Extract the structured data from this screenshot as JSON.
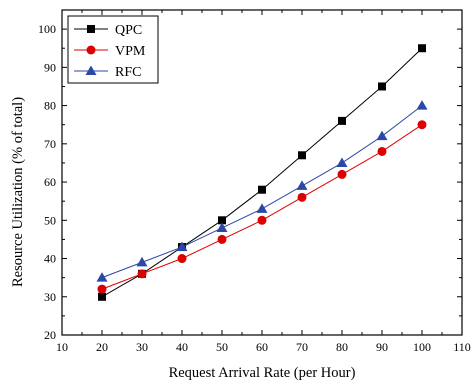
{
  "chart_data": {
    "type": "line",
    "xlabel": "Request Arrival Rate (per Hour)",
    "ylabel": "Resource Utilization (% of total)",
    "xlim": [
      10,
      110
    ],
    "ylim": [
      20,
      105
    ],
    "x_ticks": [
      "10",
      "20",
      "30",
      "40",
      "50",
      "60",
      "70",
      "80",
      "90",
      "100",
      "110"
    ],
    "y_ticks": [
      "20",
      "30",
      "40",
      "50",
      "60",
      "70",
      "80",
      "90",
      "100"
    ],
    "x": [
      20,
      30,
      40,
      50,
      60,
      70,
      80,
      90,
      100
    ],
    "grid": false,
    "legend_position": "top-left",
    "series": [
      {
        "name": "QPC",
        "color": "#000000",
        "marker": "square",
        "values": [
          30,
          36,
          43,
          50,
          58,
          67,
          76,
          85,
          95
        ]
      },
      {
        "name": "VPM",
        "color": "#dd0000",
        "marker": "circle",
        "values": [
          32,
          36,
          40,
          45,
          50,
          56,
          62,
          68,
          75
        ]
      },
      {
        "name": "RFC",
        "color": "#2b47a8",
        "marker": "triangle",
        "values": [
          35,
          39,
          43,
          48,
          53,
          59,
          65,
          72,
          80
        ]
      }
    ]
  }
}
